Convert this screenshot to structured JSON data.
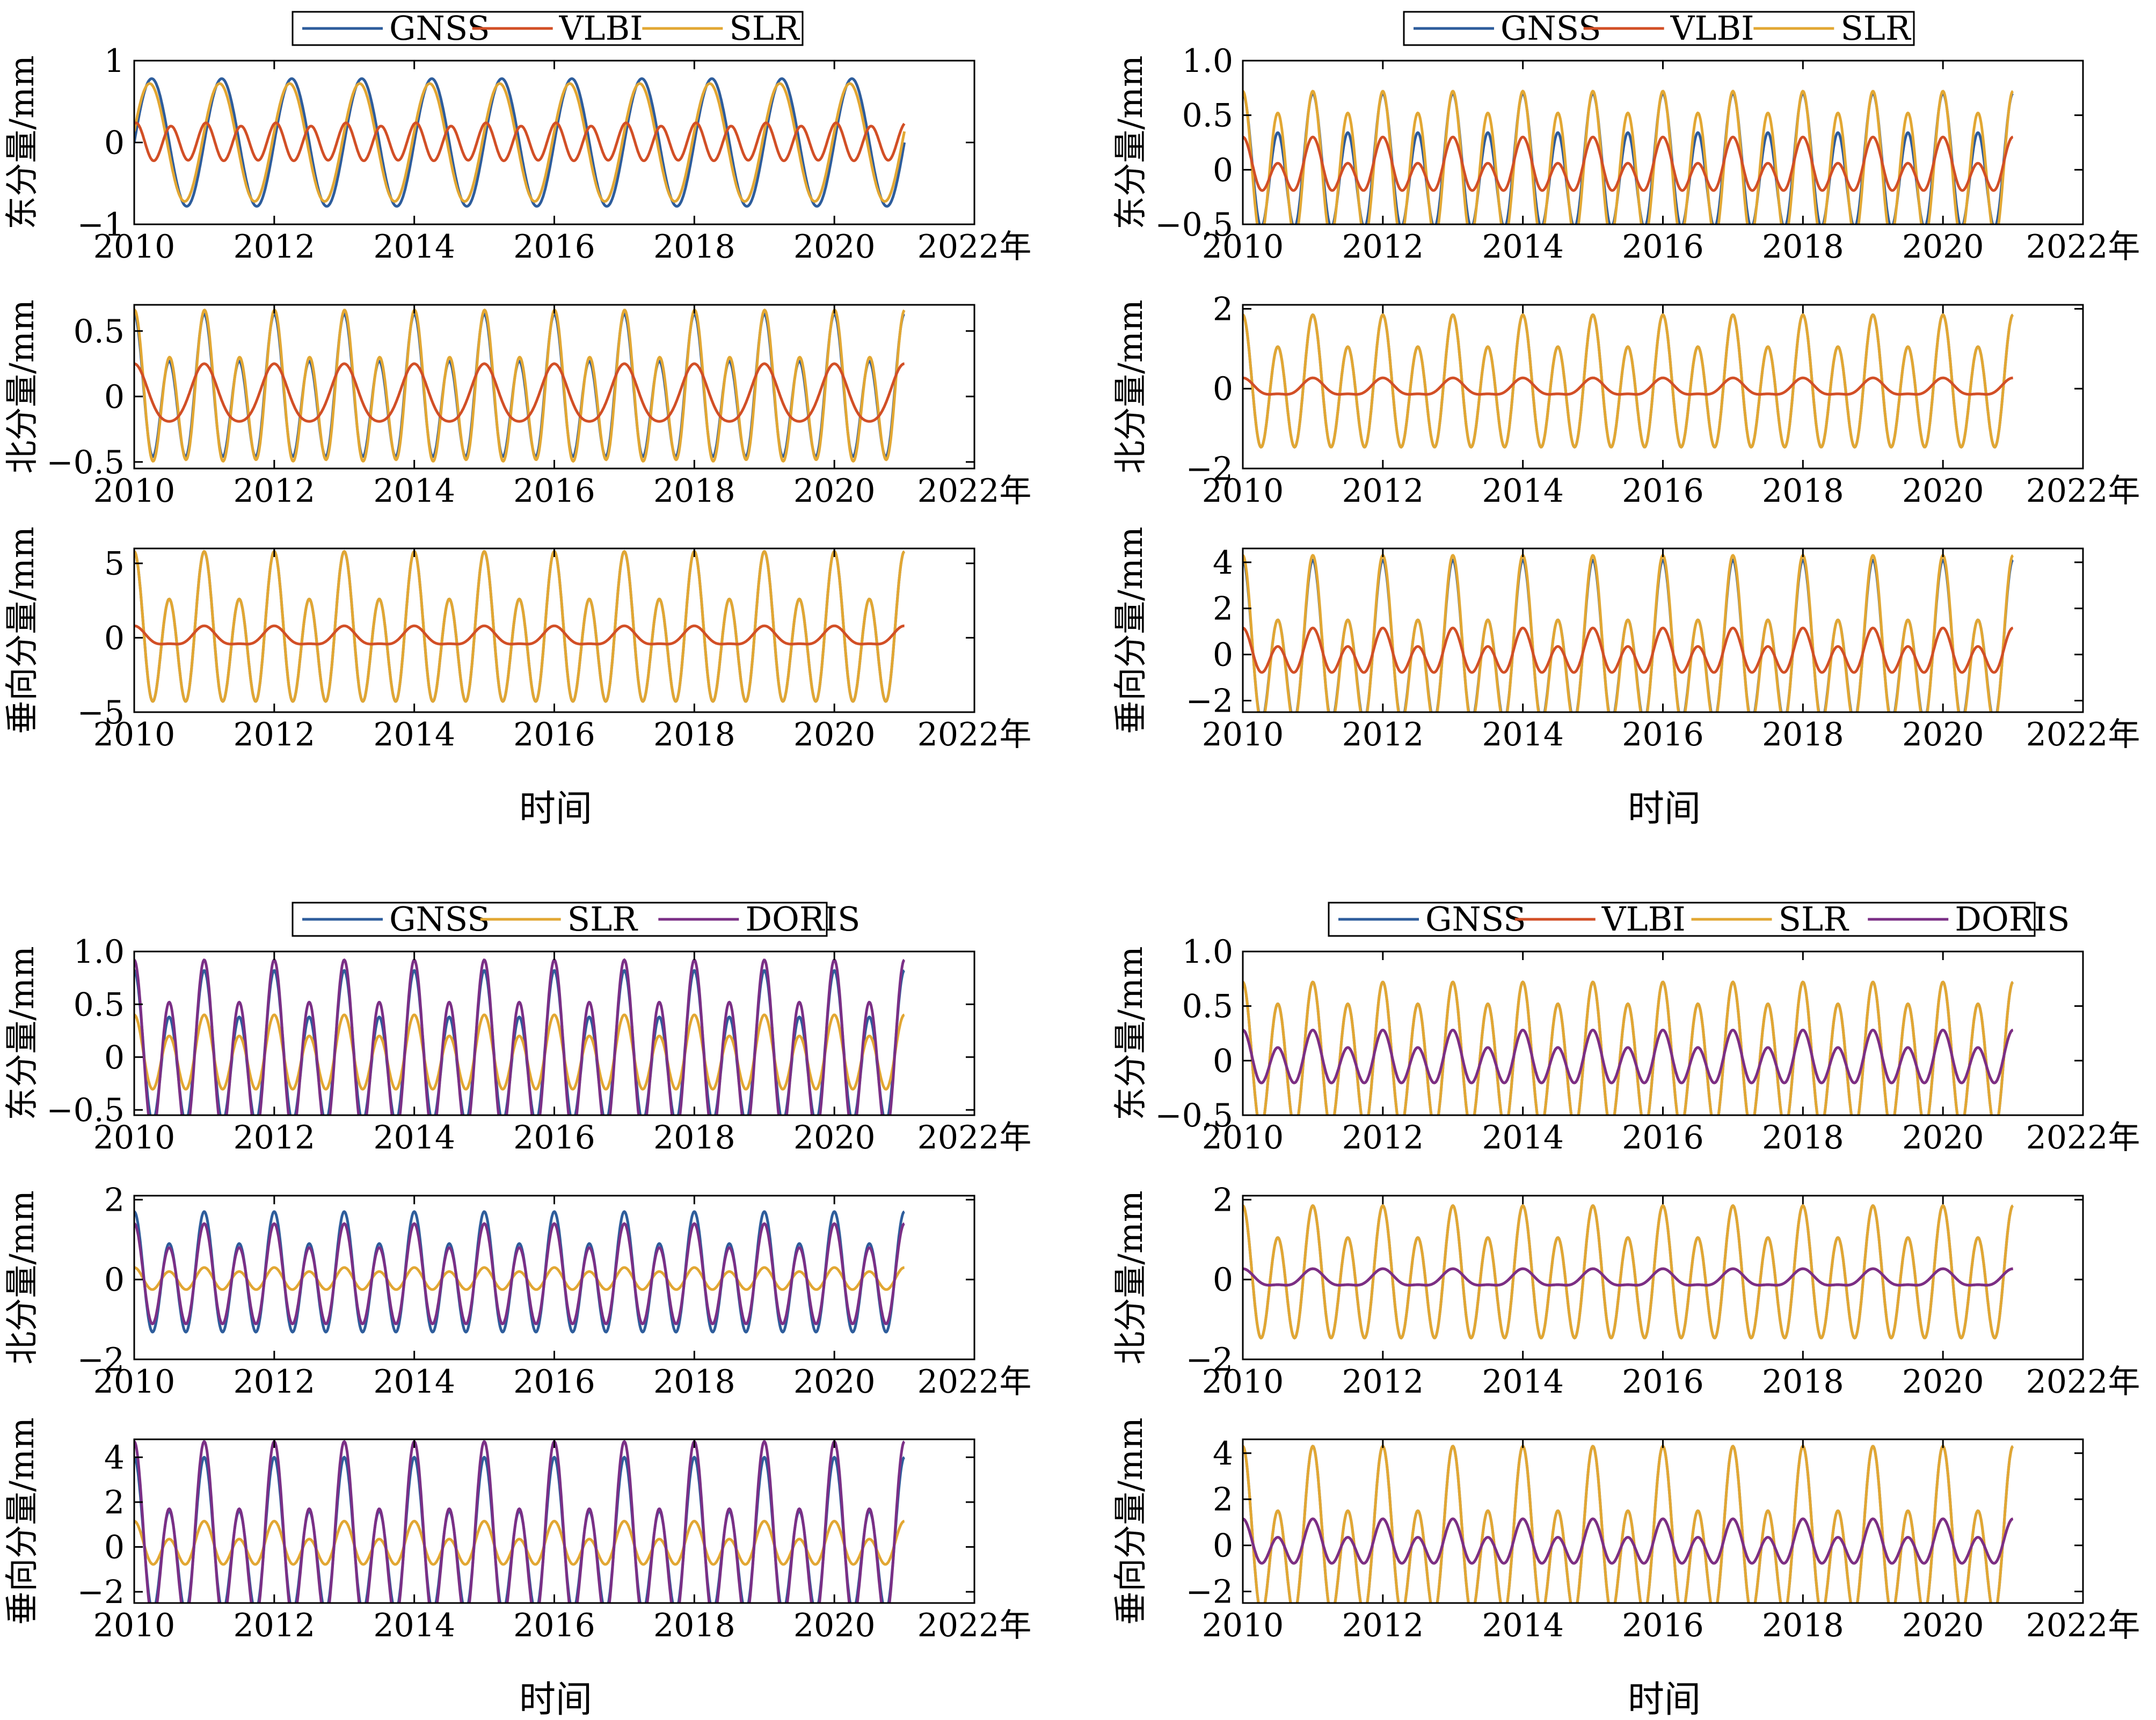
{
  "colors": {
    "GNSS": "#2e5d9c",
    "VLBI": "#d24f26",
    "SLR": "#e2a733",
    "DORIS": "#7b2f86"
  },
  "chart_data": [
    {
      "id": "A",
      "type": "line",
      "legend": [
        "GNSS",
        "VLBI",
        "SLR"
      ],
      "x_time_label": "时间",
      "panels": [
        {
          "ylabel": "东分量/mm",
          "xlim": [
            2010,
            2022
          ],
          "x_ticks": [
            "2010",
            "2012",
            "2014",
            "2016",
            "2018",
            "2020",
            "2022年"
          ],
          "ylim": [
            -1,
            1
          ],
          "y_ticks": [
            "1",
            "0",
            "−1"
          ],
          "series": [
            {
              "name": "GNSS",
              "a": 0.78,
              "p1": 0.25,
              "b": 0.0,
              "p2": 0.0,
              "x_end": 2021.0
            },
            {
              "name": "SLR",
              "a": 0.72,
              "p1": 0.22,
              "b": 0.0,
              "p2": 0.0,
              "x_end": 2021.0
            },
            {
              "name": "VLBI",
              "a": 0.02,
              "p1": 0.0,
              "b": 0.22,
              "p2": 0.05,
              "x_end": 2021.0
            }
          ]
        },
        {
          "ylabel": "北分量/mm",
          "xlim": [
            2010,
            2022
          ],
          "x_ticks": [
            "2010",
            "2012",
            "2014",
            "2016",
            "2018",
            "2020",
            "2022年"
          ],
          "ylim": [
            -0.55,
            0.7
          ],
          "y_ticks": [
            "0.5",
            "0",
            "−0.5"
          ],
          "series": [
            {
              "name": "GNSS",
              "a": 0.18,
              "p1": 0.0,
              "b": 0.45,
              "p2": 0.0,
              "x_end": 2021.0
            },
            {
              "name": "SLR",
              "a": 0.18,
              "p1": 0.0,
              "b": 0.48,
              "p2": 0.01,
              "x_end": 2021.0
            },
            {
              "name": "VLBI",
              "a": 0.22,
              "p1": 0.0,
              "b": 0.03,
              "p2": 0.0,
              "x_end": 2021.0
            }
          ]
        },
        {
          "ylabel": "垂向分量/mm",
          "xlim": [
            2010,
            2022
          ],
          "x_ticks": [
            "2010",
            "2012",
            "2014",
            "2016",
            "2018",
            "2020",
            "2022年"
          ],
          "ylim": [
            -5,
            6
          ],
          "y_ticks": [
            "5",
            "0",
            "−5"
          ],
          "series": [
            {
              "name": "GNSS",
              "a": 1.6,
              "p1": 0.0,
              "b": 4.2,
              "p2": 0.0,
              "x_end": 2021.0
            },
            {
              "name": "SLR",
              "a": 1.6,
              "p1": 0.0,
              "b": 4.2,
              "p2": 0.0,
              "x_end": 2021.0
            },
            {
              "name": "VLBI",
              "a": 0.6,
              "p1": 0.0,
              "b": 0.2,
              "p2": 0.0,
              "x_end": 2021.0
            }
          ]
        }
      ]
    },
    {
      "id": "B",
      "type": "line",
      "legend": [
        "GNSS",
        "VLBI",
        "SLR"
      ],
      "x_time_label": "时间",
      "panels": [
        {
          "ylabel": "东分量/mm",
          "xlim": [
            2010,
            2022
          ],
          "x_ticks": [
            "2010",
            "2012",
            "2014",
            "2016",
            "2018",
            "2020",
            "2022年"
          ],
          "ylim": [
            -0.5,
            1.0
          ],
          "y_ticks": [
            "1.0",
            "0.5",
            "0",
            "−0.5"
          ],
          "series": [
            {
              "name": "GNSS",
              "a": 0.18,
              "p1": 0.0,
              "b": 0.52,
              "p2": 0.0,
              "x_end": 2021.0
            },
            {
              "name": "SLR",
              "a": 0.1,
              "p1": 0.0,
              "b": 0.62,
              "p2": 0.0,
              "x_end": 2021.0
            },
            {
              "name": "VLBI",
              "a": 0.12,
              "p1": 0.0,
              "b": 0.18,
              "p2": 0.0,
              "x_end": 2021.0
            }
          ]
        },
        {
          "ylabel": "北分量/mm",
          "xlim": [
            2010,
            2022
          ],
          "x_ticks": [
            "2010",
            "2012",
            "2014",
            "2016",
            "2018",
            "2020",
            "2022年"
          ],
          "ylim": [
            -2,
            2.1
          ],
          "y_ticks": [
            "2",
            "0",
            "−2"
          ],
          "series": [
            {
              "name": "GNSS",
              "a": 0.4,
              "p1": 0.0,
              "b": 1.45,
              "p2": 0.0,
              "x_end": 2021.0
            },
            {
              "name": "SLR",
              "a": 0.4,
              "p1": 0.0,
              "b": 1.45,
              "p2": 0.0,
              "x_end": 2021.0
            },
            {
              "name": "VLBI",
              "a": 0.2,
              "p1": 0.0,
              "b": 0.07,
              "p2": 0.0,
              "x_end": 2021.0
            }
          ]
        },
        {
          "ylabel": "垂向分量/mm",
          "xlim": [
            2010,
            2022
          ],
          "x_ticks": [
            "2010",
            "2012",
            "2014",
            "2016",
            "2018",
            "2020",
            "2022年"
          ],
          "ylim": [
            -2.5,
            4.6
          ],
          "y_ticks": [
            "4",
            "2",
            "0",
            "−2"
          ],
          "series": [
            {
              "name": "GNSS",
              "a": 1.3,
              "p1": 0.0,
              "b": 2.8,
              "p2": 0.0,
              "x_end": 2021.0
            },
            {
              "name": "SLR",
              "a": 1.4,
              "p1": 0.0,
              "b": 2.9,
              "p2": 0.0,
              "x_end": 2021.0
            },
            {
              "name": "VLBI",
              "a": 0.4,
              "p1": 0.0,
              "b": 0.75,
              "p2": 0.0,
              "x_end": 2021.0
            }
          ]
        }
      ]
    },
    {
      "id": "C",
      "type": "line",
      "legend": [
        "GNSS",
        "SLR",
        "DORIS"
      ],
      "x_time_label": "时间",
      "panels": [
        {
          "ylabel": "东分量/mm",
          "xlim": [
            2010,
            2022
          ],
          "x_ticks": [
            "2010",
            "2012",
            "2014",
            "2016",
            "2018",
            "2020",
            "2022年"
          ],
          "ylim": [
            -0.55,
            1.0
          ],
          "y_ticks": [
            "1.0",
            "0.5",
            "0",
            "−0.5"
          ],
          "series": [
            {
              "name": "GNSS",
              "a": 0.22,
              "p1": 0.0,
              "b": 0.6,
              "p2": 0.0,
              "x_end": 2021.0
            },
            {
              "name": "SLR",
              "a": 0.1,
              "p1": 0.0,
              "b": 0.3,
              "p2": 0.0,
              "x_end": 2021.0
            },
            {
              "name": "DORIS",
              "a": 0.2,
              "p1": 0.0,
              "b": 0.72,
              "p2": 0.0,
              "x_end": 2021.0
            }
          ]
        },
        {
          "ylabel": "北分量/mm",
          "xlim": [
            2010,
            2022
          ],
          "x_ticks": [
            "2010",
            "2012",
            "2014",
            "2016",
            "2018",
            "2020",
            "2022年"
          ],
          "ylim": [
            -2,
            2.1
          ],
          "y_ticks": [
            "2",
            "0",
            "−2"
          ],
          "series": [
            {
              "name": "GNSS",
              "a": 0.4,
              "p1": 0.0,
              "b": 1.3,
              "p2": 0.0,
              "x_end": 2021.0
            },
            {
              "name": "SLR",
              "a": 0.05,
              "p1": 0.0,
              "b": 0.25,
              "p2": 0.0,
              "x_end": 2021.0
            },
            {
              "name": "DORIS",
              "a": 0.3,
              "p1": 0.0,
              "b": 1.1,
              "p2": 0.0,
              "x_end": 2021.0
            }
          ]
        },
        {
          "ylabel": "垂向分量/mm",
          "xlim": [
            2010,
            2022
          ],
          "x_ticks": [
            "2010",
            "2012",
            "2014",
            "2016",
            "2018",
            "2020",
            "2022年"
          ],
          "ylim": [
            -2.5,
            4.8
          ],
          "y_ticks": [
            "4",
            "2",
            "0",
            "−2"
          ],
          "series": [
            {
              "name": "GNSS",
              "a": 1.2,
              "p1": 0.0,
              "b": 2.8,
              "p2": 0.0,
              "x_end": 2021.0
            },
            {
              "name": "SLR",
              "a": 0.4,
              "p1": 0.0,
              "b": 0.75,
              "p2": 0.0,
              "x_end": 2021.0
            },
            {
              "name": "DORIS",
              "a": 1.5,
              "p1": 0.0,
              "b": 3.2,
              "p2": 0.0,
              "x_end": 2021.0
            }
          ]
        }
      ]
    },
    {
      "id": "D",
      "type": "line",
      "legend": [
        "GNSS",
        "VLBI",
        "SLR",
        "DORIS"
      ],
      "x_time_label": "时间",
      "panels": [
        {
          "ylabel": "东分量/mm",
          "xlim": [
            2010,
            2022
          ],
          "x_ticks": [
            "2010",
            "2012",
            "2014",
            "2016",
            "2018",
            "2020",
            "2022年"
          ],
          "ylim": [
            -0.5,
            1.0
          ],
          "y_ticks": [
            "1.0",
            "0.5",
            "0",
            "−0.5"
          ],
          "series": [
            {
              "name": "GNSS",
              "a": 0.1,
              "p1": 0.0,
              "b": 0.62,
              "p2": 0.0,
              "x_end": 2021.0
            },
            {
              "name": "SLR",
              "a": 0.1,
              "p1": 0.0,
              "b": 0.62,
              "p2": 0.0,
              "x_end": 2021.0
            },
            {
              "name": "VLBI",
              "a": 0.08,
              "p1": 0.0,
              "b": 0.2,
              "p2": 0.0,
              "x_end": 2021.0
            },
            {
              "name": "DORIS",
              "a": 0.08,
              "p1": 0.0,
              "b": 0.2,
              "p2": 0.0,
              "x_end": 2021.0
            }
          ]
        },
        {
          "ylabel": "北分量/mm",
          "xlim": [
            2010,
            2022
          ],
          "x_ticks": [
            "2010",
            "2012",
            "2014",
            "2016",
            "2018",
            "2020",
            "2022年"
          ],
          "ylim": [
            -2,
            2.1
          ],
          "y_ticks": [
            "2",
            "0",
            "−2"
          ],
          "series": [
            {
              "name": "GNSS",
              "a": 0.4,
              "p1": 0.0,
              "b": 1.45,
              "p2": 0.0,
              "x_end": 2021.0
            },
            {
              "name": "SLR",
              "a": 0.4,
              "p1": 0.0,
              "b": 1.45,
              "p2": 0.0,
              "x_end": 2021.0
            },
            {
              "name": "VLBI",
              "a": 0.2,
              "p1": 0.0,
              "b": 0.07,
              "p2": 0.0,
              "x_end": 2021.0
            },
            {
              "name": "DORIS",
              "a": 0.2,
              "p1": 0.0,
              "b": 0.07,
              "p2": 0.0,
              "x_end": 2021.0
            }
          ]
        },
        {
          "ylabel": "垂向分量/mm",
          "xlim": [
            2010,
            2022
          ],
          "x_ticks": [
            "2010",
            "2012",
            "2014",
            "2016",
            "2018",
            "2020",
            "2022年"
          ],
          "ylim": [
            -2.5,
            4.6
          ],
          "y_ticks": [
            "4",
            "2",
            "0",
            "−2"
          ],
          "series": [
            {
              "name": "GNSS",
              "a": 1.4,
              "p1": 0.0,
              "b": 2.9,
              "p2": 0.0,
              "x_end": 2021.0
            },
            {
              "name": "SLR",
              "a": 1.4,
              "p1": 0.0,
              "b": 2.9,
              "p2": 0.0,
              "x_end": 2021.0
            },
            {
              "name": "VLBI",
              "a": 0.4,
              "p1": 0.0,
              "b": 0.75,
              "p2": 0.0,
              "x_end": 2021.0
            },
            {
              "name": "DORIS",
              "a": 0.4,
              "p1": 0.0,
              "b": 0.75,
              "p2": 0.0,
              "x_end": 2021.0
            }
          ]
        }
      ]
    }
  ]
}
